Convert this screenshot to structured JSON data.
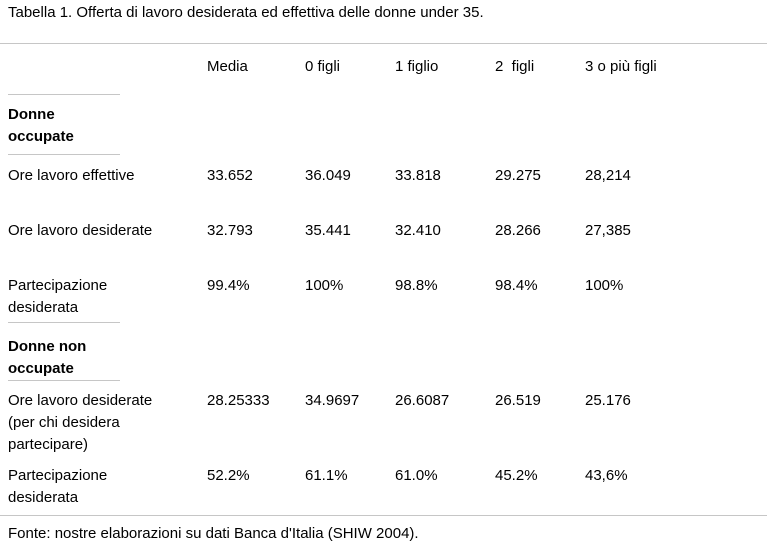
{
  "caption": "Tabella 1. Offerta di lavoro desiderata ed effettiva delle donne under 35.",
  "source": "Fonte: nostre elaborazioni su dati Banca d'Italia (SHIW 2004).",
  "colors": {
    "rule": "#c6c6c6",
    "text": "#000000",
    "background": "#ffffff"
  },
  "table": {
    "columns": [
      "",
      "Media",
      "0 figli",
      "1 figlio",
      "2  figli",
      "3 o più figli"
    ],
    "sections": [
      {
        "header": "Donne\noccupate",
        "rows": [
          {
            "label": "Ore lavoro effettive",
            "values": [
              "33.652",
              "36.049",
              "33.818",
              "29.275",
              "28,214"
            ]
          },
          {
            "label": "Ore lavoro desiderate",
            "values": [
              "32.793",
              "35.441",
              "32.410",
              "28.266",
              "27,385"
            ]
          },
          {
            "label": "Partecipazione\ndesiderata",
            "values": [
              "99.4%",
              "100%",
              "98.8%",
              "98.4%",
              "100%"
            ]
          }
        ]
      },
      {
        "header": "Donne non\noccupate",
        "rows": [
          {
            "label": "Ore lavoro desiderate\n(per chi desidera\npartecipare)",
            "values": [
              "28.25333",
              "34.9697",
              "26.6087",
              "26.519",
              "25.176"
            ]
          },
          {
            "label": "Partecipazione\ndesiderata",
            "values": [
              "52.2%",
              "61.1%",
              "61.0%",
              "45.2%",
              "43,6%"
            ]
          }
        ]
      }
    ]
  }
}
